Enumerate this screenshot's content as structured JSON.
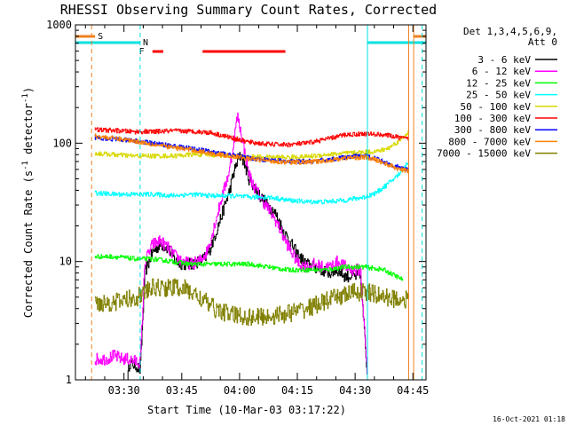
{
  "chart_data": {
    "type": "line",
    "title": "RHESSI Observing Summary Count Rates, Corrected",
    "xlabel": "Start Time (10-Mar-03 03:17:22)",
    "ylabel": "Corrected Count Rate (s",
    "ylabel_sup": "-1",
    "ylabel_mid": " detector",
    "ylabel_sup2": "-1",
    "ylabel_end": ")",
    "yscale": "log",
    "ylim": [
      1,
      1000
    ],
    "xlim_minutes": [
      0,
      91
    ],
    "x_ticks": [
      {
        "label": "03:30",
        "min": 12.6
      },
      {
        "label": "03:45",
        "min": 27.6
      },
      {
        "label": "04:00",
        "min": 42.6
      },
      {
        "label": "04:15",
        "min": 57.6
      },
      {
        "label": "04:30",
        "min": 72.6
      },
      {
        "label": "04:45",
        "min": 87.6
      }
    ],
    "y_ticks": [
      {
        "label": "1",
        "value": 1
      },
      {
        "label": "10",
        "value": 10
      },
      {
        "label": "100",
        "value": 100
      },
      {
        "label": "1000",
        "value": 1000
      }
    ],
    "legend_title": "Det 1,3,4,5,6,9,",
    "legend_subtitle": "Att 0",
    "legend_position": "top-right",
    "timestamp": "16-Oct-2021 01:18",
    "flag_labels": {
      "saa": "S",
      "night": "N",
      "flare": "F"
    },
    "colors": {
      "saa": "#f08020",
      "night": "#00e0e0",
      "flare": "#ff0000"
    },
    "flags": {
      "saa_spans": [
        [
          0,
          5.1
        ],
        [
          87.8,
          91
        ]
      ],
      "night_spans": [
        [
          0,
          16.8
        ],
        [
          75.8,
          91
        ]
      ],
      "flare_spans": [
        [
          20,
          22.8
        ],
        [
          33,
          54.5
        ]
      ],
      "saa_lines": [
        4.2,
        86.5
      ],
      "night_lines": [
        16.8,
        90
      ]
    },
    "series": [
      {
        "name": "3 - 6 keV",
        "color": "#000000",
        "x": [
          13.5,
          14,
          16,
          16.8,
          18,
          20,
          22,
          24,
          26,
          28,
          30,
          32,
          34,
          35,
          36,
          38,
          40,
          41,
          42,
          43,
          44,
          45,
          46,
          48,
          50,
          52,
          54,
          56,
          58,
          60,
          62,
          64,
          66,
          68,
          70,
          72,
          74,
          75.8
        ],
        "y": [
          1,
          1.4,
          1.3,
          1.2,
          8,
          12,
          14,
          13,
          10,
          9.5,
          9.5,
          10,
          11,
          13,
          16,
          25,
          40,
          55,
          70,
          80,
          65,
          50,
          45,
          35,
          30,
          25,
          18,
          14,
          11,
          9.5,
          9,
          8.5,
          8,
          8.5,
          7.5,
          7.5,
          7.5,
          1
        ]
      },
      {
        "name": "6 - 12 keV",
        "color": "#ff00ff",
        "x": [
          5,
          8,
          10,
          12,
          13.5,
          16.8,
          18,
          20,
          22,
          24,
          26,
          28,
          30,
          32,
          34,
          35,
          36,
          38,
          40,
          41,
          42,
          43,
          44,
          45,
          46,
          48,
          50,
          52,
          54,
          56,
          58,
          60,
          62,
          64,
          66,
          68,
          70,
          72,
          74,
          75.8
        ],
        "y": [
          1.5,
          1.5,
          1.6,
          1.5,
          1.5,
          1.4,
          10,
          14,
          15,
          13,
          11,
          10,
          9.5,
          10,
          12,
          15,
          20,
          35,
          60,
          100,
          170,
          120,
          80,
          55,
          45,
          35,
          28,
          22,
          16,
          12,
          9.5,
          9,
          9.5,
          9,
          9,
          10,
          9,
          8.5,
          8.5,
          1
        ]
      },
      {
        "name": "12 - 25 keV",
        "color": "#00ff00",
        "x": [
          5,
          10,
          16,
          20,
          25,
          30,
          35,
          40,
          45,
          50,
          55,
          60,
          65,
          70,
          75,
          80,
          85
        ],
        "y": [
          11,
          11,
          10.5,
          10.5,
          10,
          9.5,
          9.5,
          9.5,
          9.5,
          9,
          8.5,
          8.5,
          8.5,
          9,
          9,
          8.5,
          7
        ]
      },
      {
        "name": "25 - 50 keV",
        "color": "#00ffff",
        "x": [
          5,
          10,
          15,
          20,
          25,
          30,
          35,
          40,
          45,
          50,
          55,
          60,
          65,
          70,
          75,
          78,
          81,
          84,
          86.5
        ],
        "y": [
          38,
          37,
          37,
          37,
          36,
          37,
          36,
          36,
          35,
          35,
          33,
          32,
          32,
          33,
          35,
          38,
          45,
          55,
          70
        ]
      },
      {
        "name": "50 - 100 keV",
        "color": "#d8d800",
        "x": [
          5,
          10,
          15,
          20,
          25,
          30,
          35,
          40,
          45,
          50,
          55,
          60,
          65,
          70,
          75,
          78,
          81,
          84,
          86.5
        ],
        "y": [
          82,
          80,
          78,
          78,
          78,
          80,
          80,
          78,
          77,
          76,
          76,
          77,
          80,
          82,
          84,
          85,
          90,
          105,
          125
        ]
      },
      {
        "name": "100 - 300 keV",
        "color": "#ff0000",
        "x": [
          5,
          10,
          15,
          20,
          25,
          30,
          35,
          40,
          45,
          50,
          55,
          60,
          65,
          70,
          75,
          80,
          85,
          86.5
        ],
        "y": [
          130,
          128,
          125,
          125,
          127,
          126,
          123,
          112,
          102,
          98,
          97,
          100,
          108,
          118,
          120,
          118,
          110,
          108
        ]
      },
      {
        "name": "300 - 800 keV",
        "color": "#0000ff",
        "x": [
          5,
          10,
          15,
          20,
          25,
          30,
          35,
          40,
          45,
          50,
          55,
          60,
          65,
          70,
          75,
          78,
          81,
          84,
          86.5
        ],
        "y": [
          112,
          108,
          105,
          100,
          95,
          90,
          85,
          80,
          75,
          72,
          70,
          70,
          72,
          76,
          78,
          74,
          68,
          62,
          60
        ]
      },
      {
        "name": "800 - 7000 keV",
        "color": "#ff8000",
        "x": [
          5,
          10,
          15,
          20,
          25,
          30,
          35,
          40,
          45,
          50,
          55,
          60,
          65,
          70,
          75,
          78,
          81,
          84,
          86.5
        ],
        "y": [
          115,
          110,
          105,
          98,
          92,
          88,
          82,
          78,
          74,
          71,
          69,
          69,
          71,
          75,
          76,
          72,
          66,
          60,
          58
        ]
      },
      {
        "name": "7000 - 15000 keV",
        "color": "#808000",
        "x": [
          5,
          10,
          13.5,
          16,
          18,
          20,
          24,
          28,
          32,
          36,
          40,
          44,
          48,
          52,
          56,
          60,
          64,
          68,
          72,
          76,
          80,
          84,
          86.5
        ],
        "y": [
          4.5,
          4.5,
          4.8,
          5,
          5.5,
          6,
          6,
          6,
          5,
          4,
          3.6,
          3.4,
          3.4,
          3.5,
          3.7,
          4,
          4.5,
          5,
          5.5,
          5.5,
          5,
          4.8,
          4.8
        ]
      }
    ]
  }
}
